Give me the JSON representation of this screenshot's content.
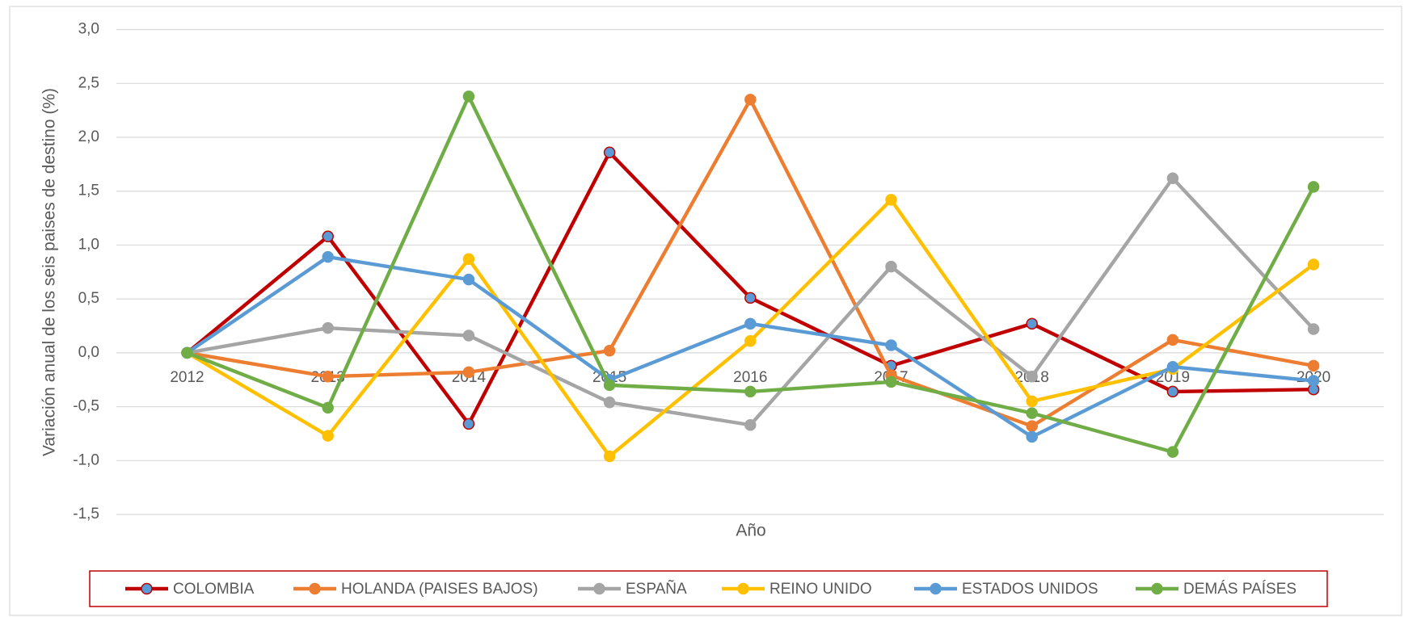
{
  "chart_data": {
    "type": "line",
    "x_label": "Año",
    "y_label": "Variación anual de los seis paises de destino (%)",
    "categories": [
      "2012",
      "2013",
      "2014",
      "2015",
      "2016",
      "2017",
      "2018",
      "2019",
      "2020"
    ],
    "ylim": [
      -1.5,
      3.0
    ],
    "yticks": [
      {
        "value": 3.0,
        "label": "3,0"
      },
      {
        "value": 2.5,
        "label": "2,5"
      },
      {
        "value": 2.0,
        "label": "2,0"
      },
      {
        "value": 1.5,
        "label": "1,5"
      },
      {
        "value": 1.0,
        "label": "1,0"
      },
      {
        "value": 0.5,
        "label": "0,5"
      },
      {
        "value": 0.0,
        "label": "0,0"
      },
      {
        "value": -0.5,
        "label": "-0,5"
      },
      {
        "value": -1.0,
        "label": "-1,0"
      },
      {
        "value": -1.5,
        "label": "-1,5"
      }
    ],
    "grid": true,
    "legend": "bottom",
    "series": [
      {
        "name": "COLOMBIA",
        "color": "#C00000",
        "marker_color": "#5B9BD5",
        "values": [
          0,
          1.08,
          -0.66,
          1.86,
          0.51,
          -0.12,
          0.27,
          -0.36,
          -0.34
        ]
      },
      {
        "name": "HOLANDA (PAISES BAJOS)",
        "color": "#ED7D31",
        "values": [
          0,
          -0.22,
          -0.18,
          0.02,
          2.35,
          -0.21,
          -0.68,
          0.12,
          -0.12
        ]
      },
      {
        "name": "ESPAÑA",
        "color": "#A5A5A5",
        "values": [
          0,
          0.23,
          0.16,
          -0.46,
          -0.67,
          0.8,
          -0.22,
          1.62,
          0.22
        ]
      },
      {
        "name": "REINO UNIDO",
        "color": "#FFC000",
        "values": [
          0,
          -0.77,
          0.87,
          -0.96,
          0.11,
          1.42,
          -0.45,
          -0.15,
          0.82
        ]
      },
      {
        "name": "ESTADOS UNIDOS",
        "color": "#5B9BD5",
        "values": [
          0,
          0.89,
          0.68,
          -0.25,
          0.27,
          0.07,
          -0.78,
          -0.13,
          -0.26
        ]
      },
      {
        "name": "DEMÁS PAÍSES",
        "color": "#70AD47",
        "values": [
          0,
          -0.51,
          2.38,
          -0.3,
          -0.36,
          -0.27,
          -0.56,
          -0.92,
          1.54
        ]
      }
    ]
  }
}
